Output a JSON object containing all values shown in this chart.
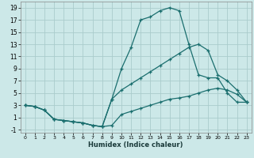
{
  "xlabel": "Humidex (Indice chaleur)",
  "bg_color": "#cce8e8",
  "grid_color": "#aacccc",
  "line_color": "#1a6e6e",
  "xlim": [
    -0.5,
    23.5
  ],
  "ylim": [
    -1.5,
    20
  ],
  "xticks": [
    0,
    1,
    2,
    3,
    4,
    5,
    6,
    7,
    8,
    9,
    10,
    11,
    12,
    13,
    14,
    15,
    16,
    17,
    18,
    19,
    20,
    21,
    22,
    23
  ],
  "yticks": [
    -1,
    1,
    3,
    5,
    7,
    9,
    11,
    13,
    15,
    17,
    19
  ],
  "line1_x": [
    0,
    1,
    2,
    3,
    4,
    5,
    6,
    7,
    8,
    9,
    10,
    11,
    12,
    13,
    14,
    15,
    16,
    17,
    18,
    19,
    20,
    21,
    22,
    23
  ],
  "line1_y": [
    3,
    2.8,
    2.2,
    0.7,
    0.5,
    0.3,
    0.1,
    -0.3,
    -0.5,
    -0.3,
    1.5,
    2.0,
    2.5,
    3.0,
    3.5,
    4.0,
    4.2,
    4.5,
    5.0,
    5.5,
    5.8,
    5.5,
    4.8,
    3.5
  ],
  "line2_x": [
    0,
    1,
    2,
    3,
    4,
    5,
    6,
    7,
    8,
    9,
    10,
    11,
    12,
    13,
    14,
    15,
    16,
    17,
    18,
    19,
    20,
    21,
    22,
    23
  ],
  "line2_y": [
    3,
    2.8,
    2.2,
    0.7,
    0.5,
    0.3,
    0.1,
    -0.3,
    -0.5,
    4.0,
    9.0,
    12.5,
    17.0,
    17.5,
    18.5,
    19.0,
    18.5,
    13.0,
    8.0,
    7.5,
    7.5,
    5.0,
    3.5,
    3.5
  ],
  "line3_x": [
    0,
    1,
    2,
    3,
    4,
    5,
    6,
    7,
    8,
    9,
    10,
    11,
    12,
    13,
    14,
    15,
    16,
    17,
    18,
    19,
    20,
    21,
    22,
    23
  ],
  "line3_y": [
    3,
    2.8,
    2.2,
    0.7,
    0.5,
    0.3,
    0.1,
    -0.3,
    -0.5,
    4.0,
    5.5,
    6.5,
    7.5,
    8.5,
    9.5,
    10.5,
    11.5,
    12.5,
    13.0,
    12.0,
    8.0,
    7.0,
    5.5,
    3.5
  ]
}
